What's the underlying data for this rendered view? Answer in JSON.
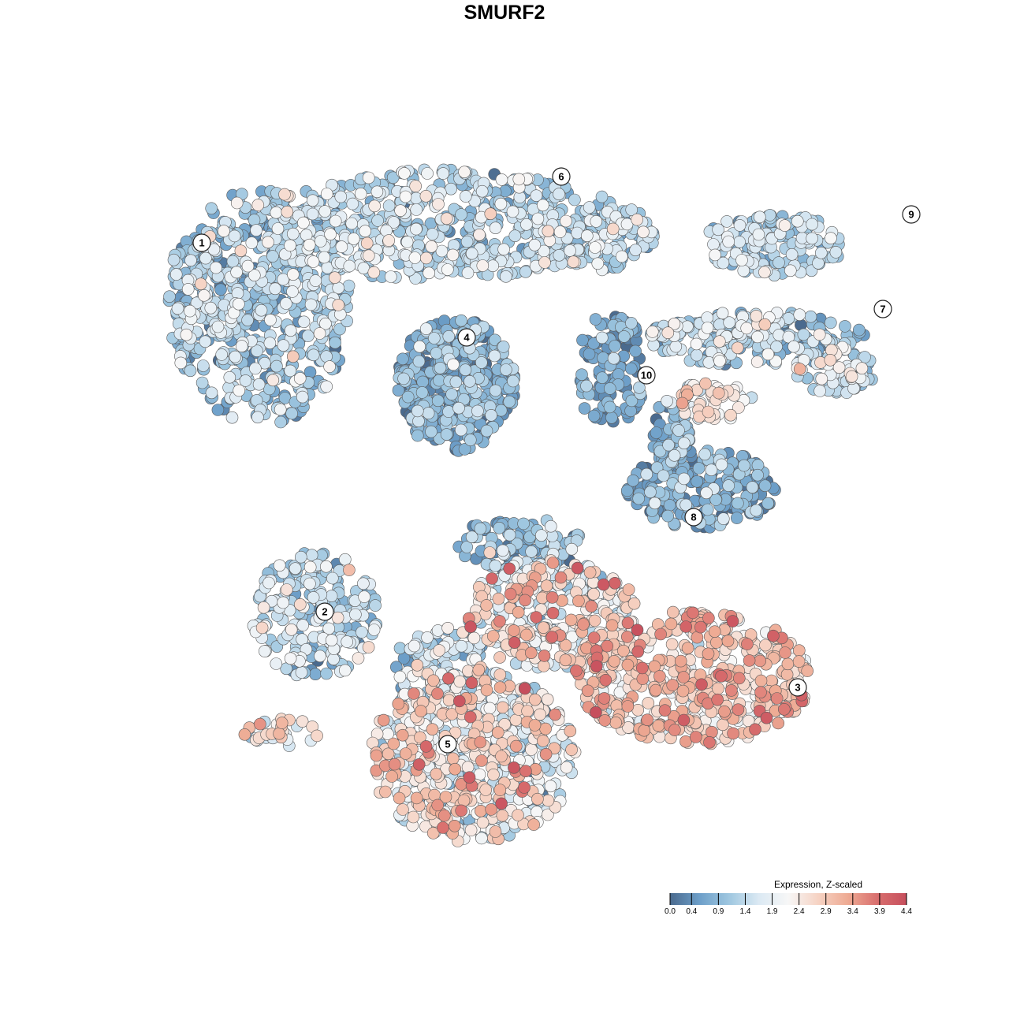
{
  "title": "SMURF2",
  "chart_data": {
    "type": "scatter",
    "title": "SMURF2",
    "xlabel": "",
    "ylabel": "",
    "grid": false,
    "legend": {
      "title": "Expression, Z-scaled",
      "placement": "bottom-right",
      "ticks": [
        "0.0",
        "0.4",
        "0.9",
        "1.4",
        "1.9",
        "2.4",
        "2.9",
        "3.4",
        "3.9",
        "4.4"
      ],
      "range": [
        0.0,
        4.4
      ],
      "colors": [
        "#4a6a8e",
        "#6d9fc9",
        "#9fc7e0",
        "#dbe9f3",
        "#f7f7f7",
        "#f6d3c4",
        "#eeab94",
        "#d96f6e",
        "#c64f5d"
      ]
    },
    "clusters": [
      {
        "label": "1",
        "x": -3.2,
        "y": 2.6,
        "mean_expression": 1.2
      },
      {
        "label": "2",
        "x": -1.9,
        "y": -1.3,
        "mean_expression": 1.4
      },
      {
        "label": "3",
        "x": 3.1,
        "y": -2.1,
        "mean_expression": 2.8
      },
      {
        "label": "4",
        "x": -0.4,
        "y": 1.6,
        "mean_expression": 0.7
      },
      {
        "label": "5",
        "x": -0.6,
        "y": -2.7,
        "mean_expression": 2.4
      },
      {
        "label": "6",
        "x": 0.6,
        "y": 3.3,
        "mean_expression": 1.4
      },
      {
        "label": "7",
        "x": 4.0,
        "y": 1.9,
        "mean_expression": 1.2
      },
      {
        "label": "8",
        "x": 2.0,
        "y": -0.3,
        "mean_expression": 0.7
      },
      {
        "label": "9",
        "x": 4.3,
        "y": 2.9,
        "mean_expression": 1.3
      },
      {
        "label": "10",
        "x": 1.5,
        "y": 1.2,
        "mean_expression": 0.6
      }
    ]
  }
}
